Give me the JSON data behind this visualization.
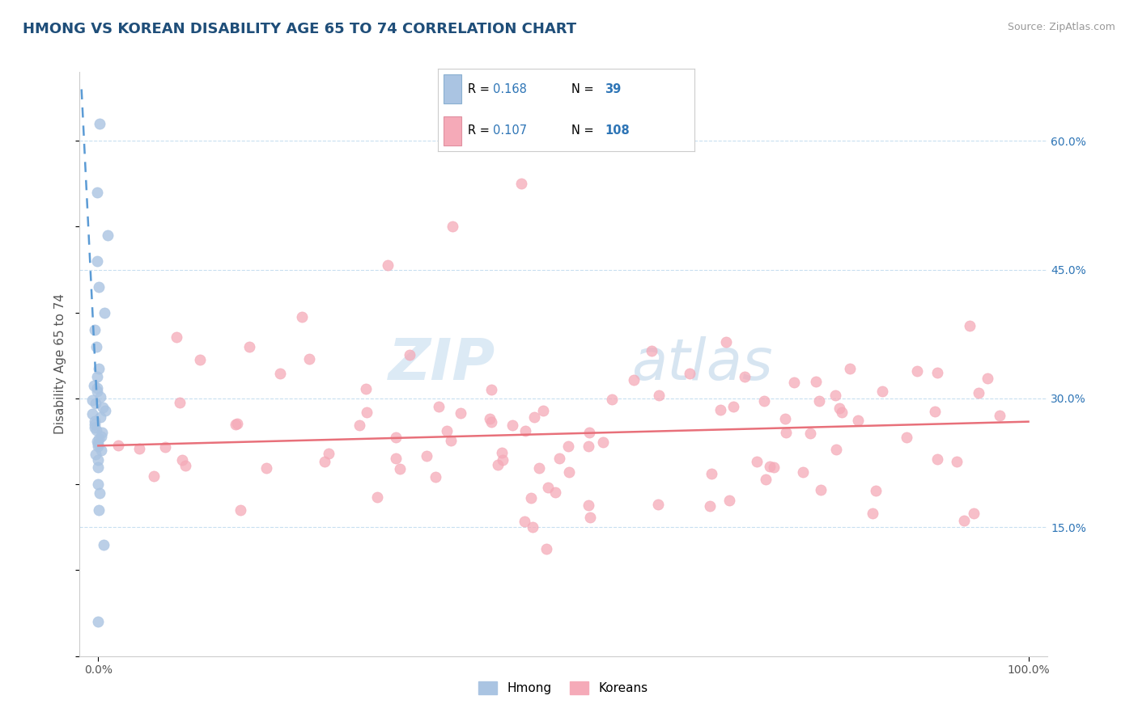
{
  "title": "HMONG VS KOREAN DISABILITY AGE 65 TO 74 CORRELATION CHART",
  "source_text": "Source: ZipAtlas.com",
  "ylabel": "Disability Age 65 to 74",
  "xlim": [
    -0.02,
    1.02
  ],
  "ylim": [
    0.0,
    0.68
  ],
  "ytick_values": [
    0.15,
    0.3,
    0.45,
    0.6
  ],
  "legend_r_hmong": "0.168",
  "legend_n_hmong": "39",
  "legend_r_korean": "0.107",
  "legend_n_korean": "108",
  "hmong_color": "#aac4e2",
  "korean_color": "#f5aab8",
  "hmong_line_color": "#5b9bd5",
  "korean_line_color": "#e8707a",
  "watermark_zip": "ZIP",
  "watermark_atlas": "atlas",
  "background_color": "#ffffff",
  "grid_color": "#c8dff0",
  "title_color": "#1f4e79",
  "axis_label_color": "#555555",
  "right_tick_color": "#2e75b6",
  "legend_r_color": "#000000",
  "legend_n_color": "#000000",
  "legend_val_color": "#2e75b6",
  "hmong_points_y": [
    0.62,
    0.54,
    0.49,
    0.46,
    0.43,
    0.4,
    0.38,
    0.36,
    0.335,
    0.325,
    0.315,
    0.312,
    0.308,
    0.302,
    0.298,
    0.294,
    0.29,
    0.286,
    0.282,
    0.278,
    0.274,
    0.27,
    0.266,
    0.263,
    0.26,
    0.256,
    0.253,
    0.25,
    0.247,
    0.244,
    0.24,
    0.235,
    0.228,
    0.22,
    0.2,
    0.19,
    0.17,
    0.13,
    0.04
  ],
  "korean_slope": 0.028,
  "korean_intercept": 0.245,
  "hmong_line_x0": 0.0,
  "hmong_line_y0": 0.265,
  "hmong_line_x1": -0.018,
  "hmong_line_y1": 0.66
}
